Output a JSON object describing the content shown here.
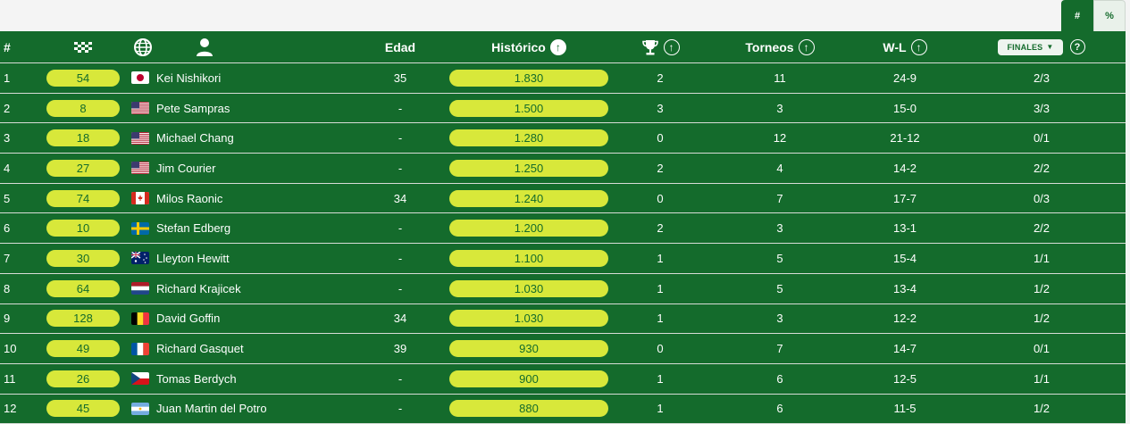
{
  "toggle": {
    "count_label": "#",
    "percent_label": "%"
  },
  "header": {
    "num_label": "#",
    "age_label": "Edad",
    "hist_label": "Histórico",
    "tour_label": "Torneos",
    "wl_label": "W-L",
    "finales_label": "FINALES",
    "icons": {
      "rank": "checkered-flag-icon",
      "globe": "globe-icon",
      "player": "person-icon",
      "titles": "trophy-icon",
      "help": "help-icon"
    }
  },
  "colors": {
    "table_bg": "#146b2c",
    "pill_bg": "#d8e83a",
    "pill_text": "#146b2c",
    "row_divider": "#d7dcd7"
  },
  "rows": [
    {
      "num": "1",
      "rank": "54",
      "flag": "japan",
      "name": "Kei Nishikori",
      "age": "35",
      "hist": "1.830",
      "titles": "2",
      "tournaments": "11",
      "wl": "24-9",
      "finals": "2/3"
    },
    {
      "num": "2",
      "rank": "8",
      "flag": "usa",
      "name": "Pete Sampras",
      "age": "-",
      "hist": "1.500",
      "titles": "3",
      "tournaments": "3",
      "wl": "15-0",
      "finals": "3/3"
    },
    {
      "num": "3",
      "rank": "18",
      "flag": "usa",
      "name": "Michael Chang",
      "age": "-",
      "hist": "1.280",
      "titles": "0",
      "tournaments": "12",
      "wl": "21-12",
      "finals": "0/1"
    },
    {
      "num": "4",
      "rank": "27",
      "flag": "usa",
      "name": "Jim Courier",
      "age": "-",
      "hist": "1.250",
      "titles": "2",
      "tournaments": "4",
      "wl": "14-2",
      "finals": "2/2"
    },
    {
      "num": "5",
      "rank": "74",
      "flag": "canada",
      "name": "Milos Raonic",
      "age": "34",
      "hist": "1.240",
      "titles": "0",
      "tournaments": "7",
      "wl": "17-7",
      "finals": "0/3"
    },
    {
      "num": "6",
      "rank": "10",
      "flag": "sweden",
      "name": "Stefan Edberg",
      "age": "-",
      "hist": "1.200",
      "titles": "2",
      "tournaments": "3",
      "wl": "13-1",
      "finals": "2/2"
    },
    {
      "num": "7",
      "rank": "30",
      "flag": "australia",
      "name": "Lleyton Hewitt",
      "age": "-",
      "hist": "1.100",
      "titles": "1",
      "tournaments": "5",
      "wl": "15-4",
      "finals": "1/1"
    },
    {
      "num": "8",
      "rank": "64",
      "flag": "netherlands",
      "name": "Richard Krajicek",
      "age": "-",
      "hist": "1.030",
      "titles": "1",
      "tournaments": "5",
      "wl": "13-4",
      "finals": "1/2"
    },
    {
      "num": "9",
      "rank": "128",
      "flag": "belgium",
      "name": "David Goffin",
      "age": "34",
      "hist": "1.030",
      "titles": "1",
      "tournaments": "3",
      "wl": "12-2",
      "finals": "1/2"
    },
    {
      "num": "10",
      "rank": "49",
      "flag": "france",
      "name": "Richard Gasquet",
      "age": "39",
      "hist": "930",
      "titles": "0",
      "tournaments": "7",
      "wl": "14-7",
      "finals": "0/1"
    },
    {
      "num": "11",
      "rank": "26",
      "flag": "czech",
      "name": "Tomas Berdych",
      "age": "-",
      "hist": "900",
      "titles": "1",
      "tournaments": "6",
      "wl": "12-5",
      "finals": "1/1"
    },
    {
      "num": "12",
      "rank": "45",
      "flag": "argentina",
      "name": "Juan Martin del Potro",
      "age": "-",
      "hist": "880",
      "titles": "1",
      "tournaments": "6",
      "wl": "11-5",
      "finals": "1/2"
    }
  ]
}
